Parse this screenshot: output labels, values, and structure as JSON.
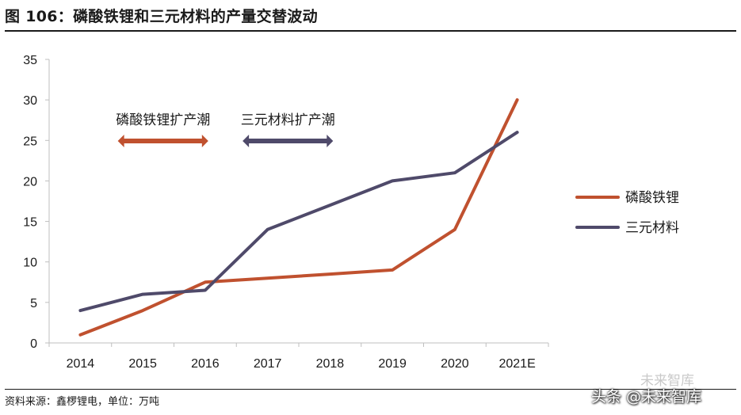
{
  "title": "图 106：磷酸铁锂和三元材料的产量交替波动",
  "source": "资料来源：鑫椤锂电，单位：万吨",
  "watermark": "头条 @未来智库",
  "watermark_ghost": "未来智库",
  "chart_data": {
    "type": "line",
    "categories": [
      "2014",
      "2015",
      "2016",
      "2017",
      "2018",
      "2019",
      "2020",
      "2021E"
    ],
    "series": [
      {
        "name": "磷酸铁锂",
        "color": "#c0512f",
        "values": [
          1.0,
          4.0,
          7.5,
          8.0,
          8.5,
          9.0,
          14.0,
          30.0
        ]
      },
      {
        "name": "三元材料",
        "color": "#4f4a6a",
        "values": [
          4.0,
          6.0,
          6.5,
          14.0,
          17.0,
          20.0,
          21.0,
          26.0
        ]
      }
    ],
    "ylim": [
      0,
      35
    ],
    "yticks": [
      "0",
      "5",
      "10",
      "15",
      "20",
      "25",
      "30",
      "35"
    ],
    "legend_position": "right",
    "annotations": [
      {
        "text": "磷酸铁锂扩产潮",
        "color": "#c0512f",
        "from": "2015",
        "to": "2016"
      },
      {
        "text": "三元材料扩产潮",
        "color": "#4f4a6a",
        "from": "2017",
        "to": "2018"
      }
    ]
  }
}
